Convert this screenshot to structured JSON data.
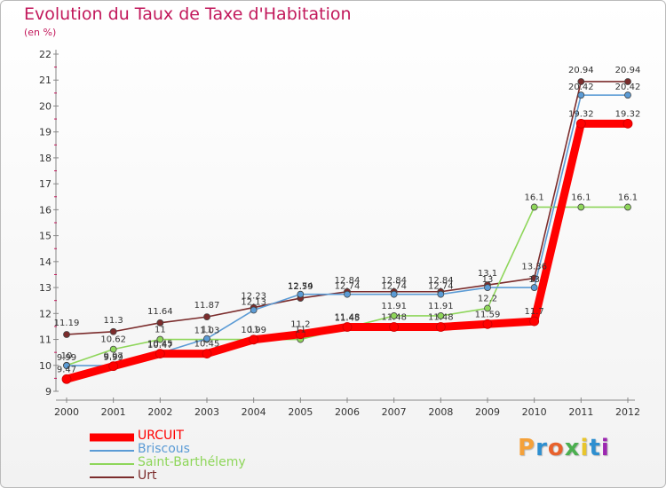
{
  "header": {
    "title": "Evolution du Taux de Taxe d'Habitation",
    "unit": "(en %)"
  },
  "logo": {
    "text": "Proxiti",
    "letters": [
      "P",
      "r",
      "o",
      "x",
      "i",
      "t",
      "i"
    ],
    "colors": [
      "#f4a13a",
      "#2e8fd0",
      "#e8622c",
      "#4caf50",
      "#e8c52c",
      "#2e8fd0",
      "#9c27b0"
    ]
  },
  "chart_data": {
    "type": "line",
    "title": "Evolution du Taux de Taxe d'Habitation",
    "ylabel": "(en %)",
    "xlabel": "",
    "x": [
      "2000",
      "2001",
      "2002",
      "2003",
      "2004",
      "2005",
      "2006",
      "2007",
      "2008",
      "2009",
      "2010",
      "2011",
      "2012"
    ],
    "ylim": [
      9,
      22
    ],
    "yticks": [
      "9",
      "10",
      "11",
      "12",
      "13",
      "14",
      "15",
      "16",
      "17",
      "18",
      "19",
      "20",
      "21",
      "22"
    ],
    "grid": false,
    "legend_position": "bottom-left",
    "series": [
      {
        "name": "URCUIT",
        "color": "#ff0000",
        "values": [
          9.47,
          9.97,
          10.45,
          10.45,
          10.99,
          11.2,
          11.48,
          11.48,
          11.48,
          11.59,
          11.7,
          19.32,
          19.32
        ],
        "labels": [
          "9.47",
          "9.97",
          "10.45",
          "10.45",
          "10.99",
          "11.2",
          "11.48",
          "11.48",
          "11.48",
          "11.59",
          "11.7",
          "19.32",
          "19.32"
        ]
      },
      {
        "name": "Briscous",
        "color": "#5b9bd5",
        "values": [
          9.99,
          9.99,
          10.47,
          11.03,
          12.13,
          12.74,
          12.74,
          12.74,
          12.74,
          13,
          13,
          20.42,
          20.42
        ],
        "labels": [
          "9.99",
          "9.99",
          "10.47",
          "11.03",
          "12.13",
          "12.74",
          "12.74",
          "12.74",
          "12.74",
          "13",
          "13",
          "20.42",
          "20.42"
        ]
      },
      {
        "name": "Saint-Barthélemy",
        "color": "#8ed65a",
        "values": [
          10,
          10.62,
          11,
          11,
          11,
          11,
          11.45,
          11.91,
          11.91,
          12.2,
          16.1,
          16.1,
          16.1
        ],
        "labels": [
          "10",
          "10.62",
          "11",
          "11",
          "11",
          "11",
          "11.45",
          "11.91",
          "11.91",
          "12.2",
          "16.1",
          "16.1",
          "16.1"
        ]
      },
      {
        "name": "Urt",
        "color": "#7b2c2c",
        "values": [
          11.19,
          11.3,
          11.64,
          11.87,
          12.23,
          12.59,
          12.84,
          12.84,
          12.84,
          13.1,
          13.36,
          20.94,
          20.94
        ],
        "labels": [
          "11.19",
          "11.3",
          "11.64",
          "11.87",
          "12.23",
          "12.59",
          "12.84",
          "12.84",
          "12.84",
          "13.1",
          "13.36",
          "20.94",
          "20.94"
        ]
      }
    ]
  }
}
